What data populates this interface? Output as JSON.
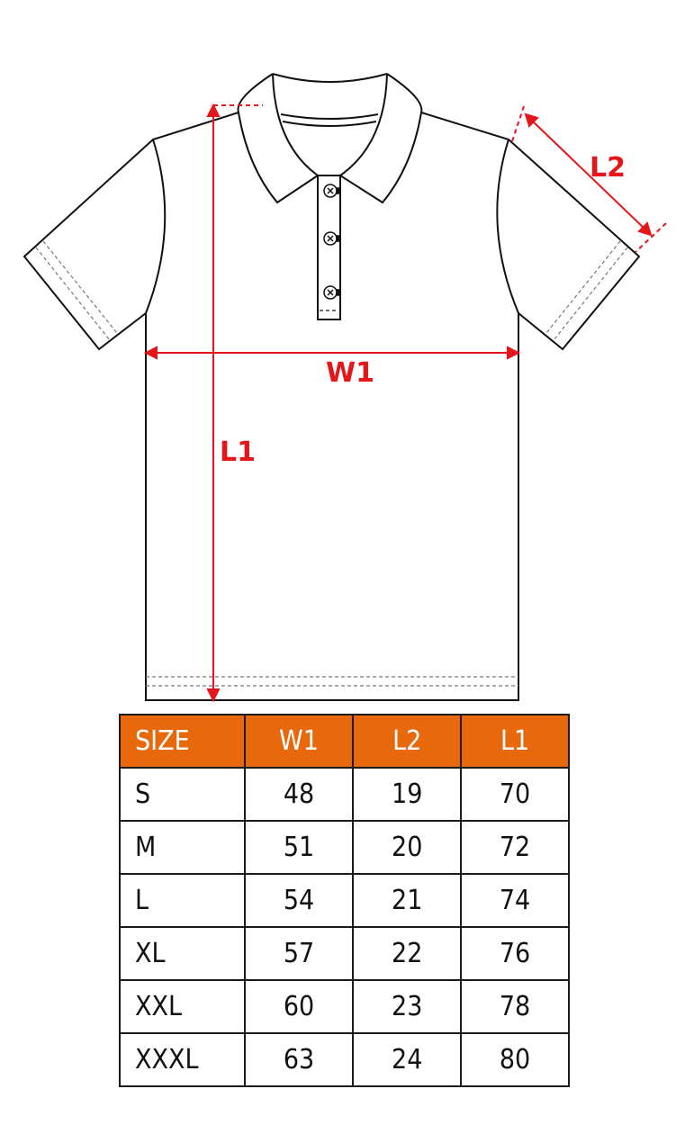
{
  "labels": {
    "w1": "W1",
    "l1": "L1",
    "l2": "L2"
  },
  "colors": {
    "header": "#e8690b",
    "measure": "#e5161a"
  },
  "table": {
    "headers": [
      "SIZE",
      "W1",
      "L2",
      "L1"
    ],
    "rows": [
      [
        "S",
        "48",
        "19",
        "70"
      ],
      [
        "M",
        "51",
        "20",
        "72"
      ],
      [
        "L",
        "54",
        "21",
        "74"
      ],
      [
        "XL",
        "57",
        "22",
        "76"
      ],
      [
        "XXL",
        "60",
        "23",
        "78"
      ],
      [
        "XXXL",
        "63",
        "24",
        "80"
      ]
    ]
  }
}
